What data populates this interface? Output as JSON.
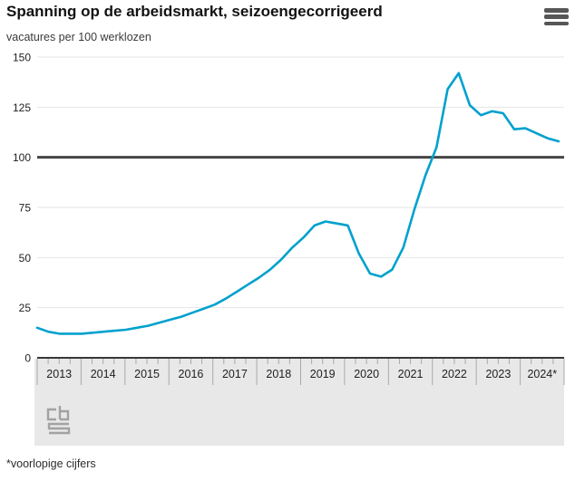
{
  "header": {
    "title": "Spanning op de arbeidsmarkt, seizoengecorrigeerd",
    "subtitle": "vacatures per 100 werklozen",
    "menu_icon": "hamburger-menu-icon"
  },
  "footer": {
    "footnote": "*voorlopige cijfers",
    "logo": "cbs-logo"
  },
  "colors": {
    "line": "#00a1cd",
    "grid": "#e6e6e6",
    "zero_line": "#383838",
    "reference_line": "#454545",
    "axis_band": "#e8e8e8",
    "axis_ticks": "#a9a9a9",
    "text": "#1f1f1f",
    "logo": "#a2a2a2"
  },
  "chart_data": {
    "type": "line",
    "title": "Spanning op de arbeidsmarkt, seizoengecorrigeerd",
    "subtitle": "vacatures per 100 werklozen",
    "ylabel": "vacatures per 100 werklozen",
    "ylim": [
      0,
      150
    ],
    "yticks": [
      0,
      25,
      50,
      75,
      100,
      125,
      150
    ],
    "reference_line_y": 100,
    "grid": true,
    "legend": false,
    "x_year_labels": [
      "2013",
      "2014",
      "2015",
      "2016",
      "2017",
      "2018",
      "2019",
      "2020",
      "2021",
      "2022",
      "2023",
      "2024*"
    ],
    "quarters_per_year": 4,
    "x": [
      "2013Q1",
      "2013Q2",
      "2013Q3",
      "2013Q4",
      "2014Q1",
      "2014Q2",
      "2014Q3",
      "2014Q4",
      "2015Q1",
      "2015Q2",
      "2015Q3",
      "2015Q4",
      "2016Q1",
      "2016Q2",
      "2016Q3",
      "2016Q4",
      "2017Q1",
      "2017Q2",
      "2017Q3",
      "2017Q4",
      "2018Q1",
      "2018Q2",
      "2018Q3",
      "2018Q4",
      "2019Q1",
      "2019Q2",
      "2019Q3",
      "2019Q4",
      "2020Q1",
      "2020Q2",
      "2020Q3",
      "2020Q4",
      "2021Q1",
      "2021Q2",
      "2021Q3",
      "2021Q4",
      "2022Q1",
      "2022Q2",
      "2022Q3",
      "2022Q4",
      "2023Q1",
      "2023Q2",
      "2023Q3",
      "2023Q4",
      "2024Q1",
      "2024Q2",
      "2024Q3",
      "2024Q4"
    ],
    "values": [
      15,
      13,
      12,
      12,
      12,
      12.5,
      13,
      13.5,
      14,
      15,
      16,
      17.5,
      19,
      20.5,
      22.5,
      24.5,
      26.5,
      29.5,
      33,
      36.5,
      40,
      44,
      49,
      55,
      60,
      66,
      68,
      67,
      66,
      52,
      42,
      40.5,
      44,
      55,
      74,
      91,
      105,
      134,
      142,
      126,
      121,
      123,
      122,
      114,
      114.5,
      112,
      109.5,
      108
    ],
    "annotation": "*voorlopige cijfers"
  }
}
